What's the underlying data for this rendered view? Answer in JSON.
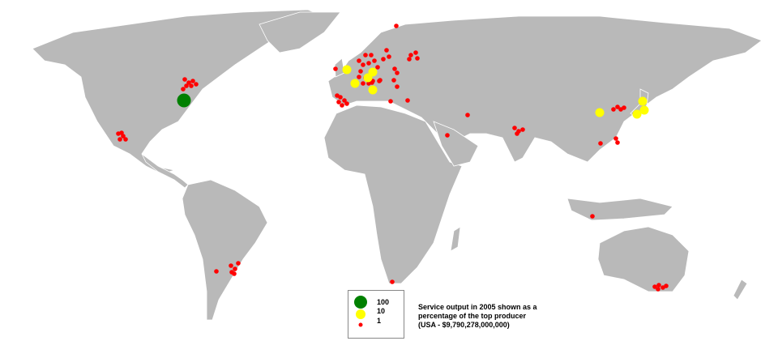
{
  "legend": {
    "items": [
      {
        "label": "100",
        "color": "#008000"
      },
      {
        "label": "10",
        "color": "#ffff00"
      },
      {
        "label": "1",
        "color": "#ff0000"
      }
    ],
    "caption_line1": "Service output in 2005 shown as a",
    "caption_line2": "percentage of the top producer",
    "caption_line3": "(USA - $9,790,278,000,000)"
  },
  "colors": {
    "land": "#b9b9b9",
    "background": "#ffffff"
  }
}
